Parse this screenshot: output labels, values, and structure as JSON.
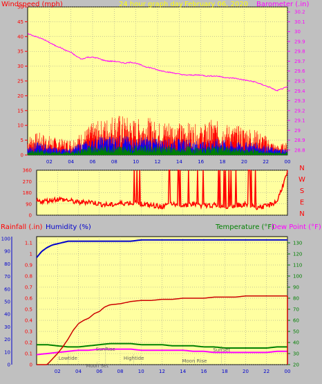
{
  "header": {
    "left_title": "Windspeed (mph)",
    "center_title": "24 hour graph day",
    "date_label": "February 06, 2020",
    "right_title": "Barometer (.in)"
  },
  "lower_header": {
    "rainfall_label": "Rainfall (.in)",
    "humidity_label": "Humidity (%)",
    "temperature_label": "Temperature (°F)",
    "dewpoint_label": "Dew Point (°F)"
  },
  "colors": {
    "background": "#c0c0c0",
    "plot_bg": "#ffffa0",
    "grid": "#8c8c8c",
    "wind_gust": "#ff0000",
    "wind_avg": "#0000ff",
    "wind_min": "#008000",
    "barometer": "#ff00ff",
    "direction": "#ff0000",
    "rainfall": "#cc0000",
    "humidity": "#0000cc",
    "temperature": "#008000",
    "dewpoint": "#ff00ff",
    "left_axis": "#ff0000",
    "right_axis_baro": "#ff00ff",
    "right_axis_temp": "#008000"
  },
  "chart_data": [
    {
      "type": "line",
      "panel": "wind-barometer",
      "title": "24 hour graph day",
      "subtitle": "February 06, 2020",
      "xlabel": "",
      "ylabel": "Windspeed (mph)",
      "y2label": "Barometer (.in)",
      "x_ticks": [
        "02",
        "04",
        "06",
        "08",
        "10",
        "12",
        "14",
        "16",
        "18",
        "20",
        "22",
        "00"
      ],
      "xlim": [
        0,
        24
      ],
      "ylim": [
        0,
        50
      ],
      "y_ticks": [
        0,
        5,
        10,
        15,
        20,
        25,
        30,
        35,
        40,
        45,
        50
      ],
      "y2lim": [
        28.75,
        30.25
      ],
      "y2_ticks": [
        "28.8",
        "28.9",
        "29",
        "29.1",
        "29.2",
        "29.3",
        "29.4",
        "29.5",
        "29.6",
        "29.7",
        "29.8",
        "29.9",
        "30",
        "30.1",
        "30.2"
      ],
      "grid": true,
      "series": [
        {
          "name": "Barometer (.in)",
          "axis": "right",
          "x": [
            0,
            0.5,
            1,
            1.5,
            2,
            2.5,
            3,
            3.5,
            4,
            4.5,
            5,
            5.5,
            6,
            6.5,
            7,
            7.5,
            8,
            8.5,
            9,
            9.5,
            10,
            10.5,
            11,
            11.5,
            12,
            12.5,
            13,
            13.5,
            14,
            14.5,
            15,
            15.5,
            16,
            16.5,
            17,
            17.5,
            18,
            18.5,
            19,
            19.5,
            20,
            20.5,
            21,
            21.5,
            22,
            22.5,
            23,
            23.5,
            24
          ],
          "values": [
            29.98,
            29.96,
            29.94,
            29.92,
            29.89,
            29.86,
            29.84,
            29.81,
            29.79,
            29.75,
            29.72,
            29.74,
            29.74,
            29.73,
            29.71,
            29.7,
            29.7,
            29.69,
            29.68,
            29.69,
            29.68,
            29.66,
            29.64,
            29.63,
            29.61,
            29.6,
            29.59,
            29.58,
            29.57,
            29.56,
            29.56,
            29.56,
            29.56,
            29.55,
            29.55,
            29.55,
            29.54,
            29.53,
            29.53,
            29.52,
            29.51,
            29.5,
            29.49,
            29.47,
            29.45,
            29.43,
            29.4,
            29.42,
            29.44
          ]
        },
        {
          "name": "Wind gust (mph)",
          "axis": "left",
          "x": [
            0,
            1,
            2,
            3,
            4,
            5,
            6,
            7,
            8,
            9,
            10,
            11,
            12,
            13,
            14,
            15,
            16,
            17,
            18,
            19,
            20,
            21,
            22,
            23,
            24
          ],
          "values": [
            6,
            7,
            6,
            5,
            5,
            7,
            10,
            11,
            13,
            12,
            11,
            12,
            10,
            11,
            10,
            10,
            9,
            11,
            10,
            9,
            9,
            8,
            6,
            3,
            4
          ]
        },
        {
          "name": "Wind average (mph)",
          "axis": "left",
          "x": [
            0,
            1,
            2,
            3,
            4,
            5,
            6,
            7,
            8,
            9,
            10,
            11,
            12,
            13,
            14,
            15,
            16,
            17,
            18,
            19,
            20,
            21,
            22,
            23,
            24
          ],
          "values": [
            3,
            4,
            3,
            2,
            2,
            4,
            5,
            6,
            6,
            6,
            5,
            6,
            5,
            5,
            5,
            5,
            4,
            5,
            5,
            4,
            4,
            4,
            3,
            2,
            2
          ]
        },
        {
          "name": "Wind minimum (mph)",
          "axis": "left",
          "x": [
            0,
            1,
            2,
            3,
            4,
            5,
            6,
            7,
            8,
            9,
            10,
            11,
            12,
            13,
            14,
            15,
            16,
            17,
            18,
            19,
            20,
            21,
            22,
            23,
            24
          ],
          "values": [
            1,
            2,
            1,
            1,
            1,
            2,
            3,
            3,
            3,
            3,
            3,
            3,
            3,
            3,
            2,
            3,
            2,
            3,
            3,
            2,
            2,
            2,
            1,
            1,
            1
          ]
        }
      ]
    },
    {
      "type": "line",
      "panel": "wind-direction",
      "ylabel_letters": [
        "N",
        "W",
        "S",
        "E",
        "N"
      ],
      "x_ticks": [
        "02",
        "04",
        "06",
        "08",
        "10",
        "12",
        "14",
        "16",
        "18",
        "20",
        "22",
        "00"
      ],
      "xlim": [
        0,
        24
      ],
      "ylim": [
        0,
        360
      ],
      "y_ticks": [
        0,
        90,
        180,
        270,
        360
      ],
      "grid": true,
      "series": [
        {
          "name": "Wind direction (°)",
          "x": [
            0,
            1,
            2,
            3,
            4,
            5,
            6,
            7,
            8,
            9,
            10,
            11,
            12,
            13,
            14,
            15,
            16,
            17,
            18,
            19,
            20,
            21,
            22,
            23,
            24
          ],
          "values": [
            110,
            115,
            130,
            120,
            100,
            110,
            90,
            80,
            95,
            100,
            90,
            75,
            70,
            85,
            80,
            90,
            75,
            80,
            70,
            80,
            85,
            65,
            70,
            110,
            340
          ]
        }
      ]
    },
    {
      "type": "line",
      "panel": "rain-humidity-temperature",
      "ylabel": "Rainfall (.in)",
      "y2label": "Temperature (°F)",
      "x_ticks": [
        "02",
        "04",
        "06",
        "08",
        "10",
        "12",
        "14",
        "16",
        "18",
        "20",
        "22",
        "00"
      ],
      "xlim": [
        0,
        24
      ],
      "ylim": [
        0,
        1.1
      ],
      "rain_ticks": [
        "0",
        "0.1",
        "0.2",
        "0.3",
        "0.4",
        "0.5",
        "0.6",
        "0.7",
        "0.8",
        "0.9",
        "1",
        "1.1"
      ],
      "humidity_ticks": [
        "0",
        "10",
        "20",
        "30",
        "40",
        "50",
        "60",
        "70",
        "80",
        "90",
        "100"
      ],
      "temp_ticks": [
        "20",
        "30",
        "40",
        "50",
        "60",
        "70",
        "80",
        "90",
        "100",
        "110",
        "120",
        "130"
      ],
      "grid": true,
      "series": [
        {
          "name": "Rainfall (.in)",
          "axis": "rain",
          "x": [
            0,
            0.5,
            1,
            1.5,
            2,
            2.5,
            3,
            3.5,
            4,
            4.5,
            5,
            5.5,
            6,
            6.5,
            7,
            8,
            9,
            10,
            11,
            12,
            13,
            14,
            15,
            16,
            17,
            18,
            19,
            20,
            21,
            22,
            23,
            24
          ],
          "values": [
            0,
            0,
            0,
            0.05,
            0.1,
            0.16,
            0.23,
            0.31,
            0.37,
            0.4,
            0.42,
            0.46,
            0.48,
            0.52,
            0.54,
            0.55,
            0.57,
            0.58,
            0.58,
            0.59,
            0.59,
            0.6,
            0.6,
            0.6,
            0.61,
            0.61,
            0.61,
            0.62,
            0.62,
            0.62,
            0.62,
            0.62
          ]
        },
        {
          "name": "Humidity (%)",
          "axis": "humidity",
          "x": [
            0,
            0.5,
            1,
            1.5,
            2,
            2.5,
            3,
            3.5,
            4,
            5,
            6,
            7,
            8,
            9,
            10,
            11,
            12,
            13,
            14,
            15,
            16,
            17,
            18,
            19,
            20,
            21,
            22,
            23,
            24
          ],
          "values": [
            85,
            90,
            93,
            95,
            96,
            97,
            98,
            98,
            98,
            98,
            98,
            98,
            98,
            98,
            99,
            99,
            99,
            99,
            99,
            99,
            99,
            99,
            99,
            99,
            99,
            99,
            99,
            99,
            99
          ]
        },
        {
          "name": "Temperature (°F)",
          "axis": "temp",
          "x": [
            0,
            1,
            2,
            3,
            4,
            5,
            6,
            7,
            8,
            9,
            10,
            11,
            12,
            13,
            14,
            15,
            16,
            17,
            18,
            19,
            20,
            21,
            22,
            23,
            24
          ],
          "values": [
            38,
            38,
            37,
            36,
            36,
            37,
            38,
            39,
            39,
            39,
            38,
            38,
            38,
            37,
            37,
            37,
            36,
            36,
            35,
            35,
            35,
            35,
            35,
            36,
            36
          ]
        },
        {
          "name": "Dew Point (°F)",
          "axis": "temp",
          "x": [
            0,
            1,
            2,
            3,
            4,
            5,
            6,
            7,
            8,
            9,
            10,
            11,
            12,
            13,
            14,
            15,
            16,
            17,
            18,
            19,
            20,
            21,
            22,
            23,
            24
          ],
          "values": [
            29,
            30,
            31,
            32,
            33,
            33,
            34,
            34,
            34,
            34,
            33,
            33,
            33,
            33,
            33,
            32,
            32,
            31,
            31,
            31,
            31,
            31,
            31,
            32,
            32
          ]
        }
      ],
      "annotations": [
        {
          "text": "Lowtide",
          "x": 3.0
        },
        {
          "text": "Moon Set",
          "x": 5.8
        },
        {
          "text": "SunRise",
          "x": 6.6
        },
        {
          "text": "Hightide",
          "x": 9.3
        },
        {
          "text": "Moon Rise",
          "x": 15.1
        },
        {
          "text": "SunSet",
          "x": 17.7
        }
      ]
    }
  ]
}
